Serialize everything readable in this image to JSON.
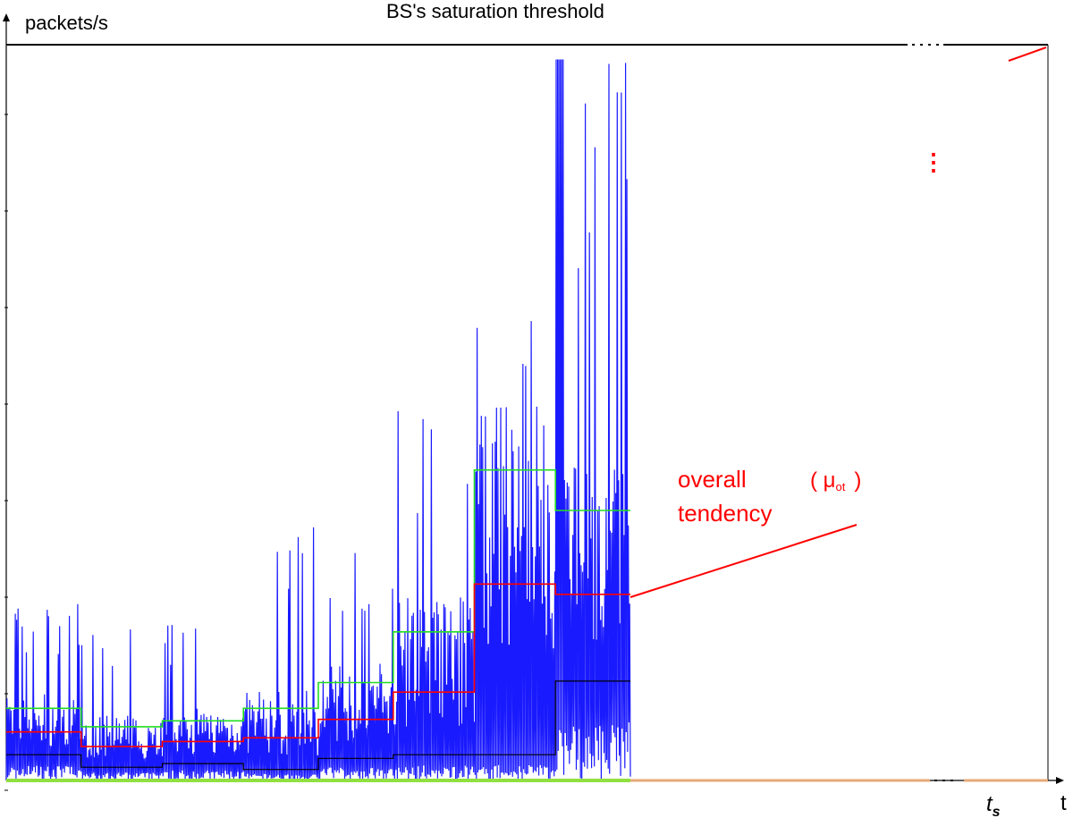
{
  "chart_data": {
    "type": "line",
    "title": "BS's saturation threshold",
    "ylabel": "packets/s",
    "xlabel": "t",
    "x_marker": "t",
    "x_marker_sub": "s",
    "annotation": {
      "line1": "overall",
      "line2": "tendency",
      "symbol": "( μ",
      "symbol_sub": "ot",
      "symbol_close": ")"
    },
    "continuation_mark": "⋮",
    "ylim": [
      0,
      100
    ],
    "grid": false,
    "colors": {
      "traffic": "#1a1aff",
      "mean": "#ff0000",
      "upper": "#22dd22",
      "lower": "#000000",
      "threshold": "#000000",
      "baseline_past": "#90e040",
      "baseline_future": "#e8a878",
      "annotation": "#ff0000"
    },
    "threshold_value": 100,
    "segments": [
      {
        "t0": 0.0,
        "t1": 0.12,
        "mean": 6.6,
        "upper": 9.8,
        "lower": 3.5,
        "peak": 24
      },
      {
        "t0": 0.12,
        "t1": 0.25,
        "mean": 4.6,
        "upper": 7.3,
        "lower": 1.8,
        "peak": 22
      },
      {
        "t0": 0.25,
        "t1": 0.38,
        "mean": 5.3,
        "upper": 8.1,
        "lower": 2.3,
        "peak": 22
      },
      {
        "t0": 0.38,
        "t1": 0.5,
        "mean": 5.8,
        "upper": 9.8,
        "lower": 1.5,
        "peak": 38
      },
      {
        "t0": 0.5,
        "t1": 0.62,
        "mean": 8.3,
        "upper": 13.3,
        "lower": 3.0,
        "peak": 32
      },
      {
        "t0": 0.62,
        "t1": 0.75,
        "mean": 12.0,
        "upper": 20.2,
        "lower": 3.5,
        "peak": 52
      },
      {
        "t0": 0.75,
        "t1": 0.88,
        "mean": 26.7,
        "upper": 42.2,
        "lower": 3.5,
        "peak": 65
      },
      {
        "t0": 0.88,
        "t1": 1.0,
        "mean": 25.3,
        "upper": 36.7,
        "lower": 13.5,
        "peak": 98
      }
    ]
  }
}
